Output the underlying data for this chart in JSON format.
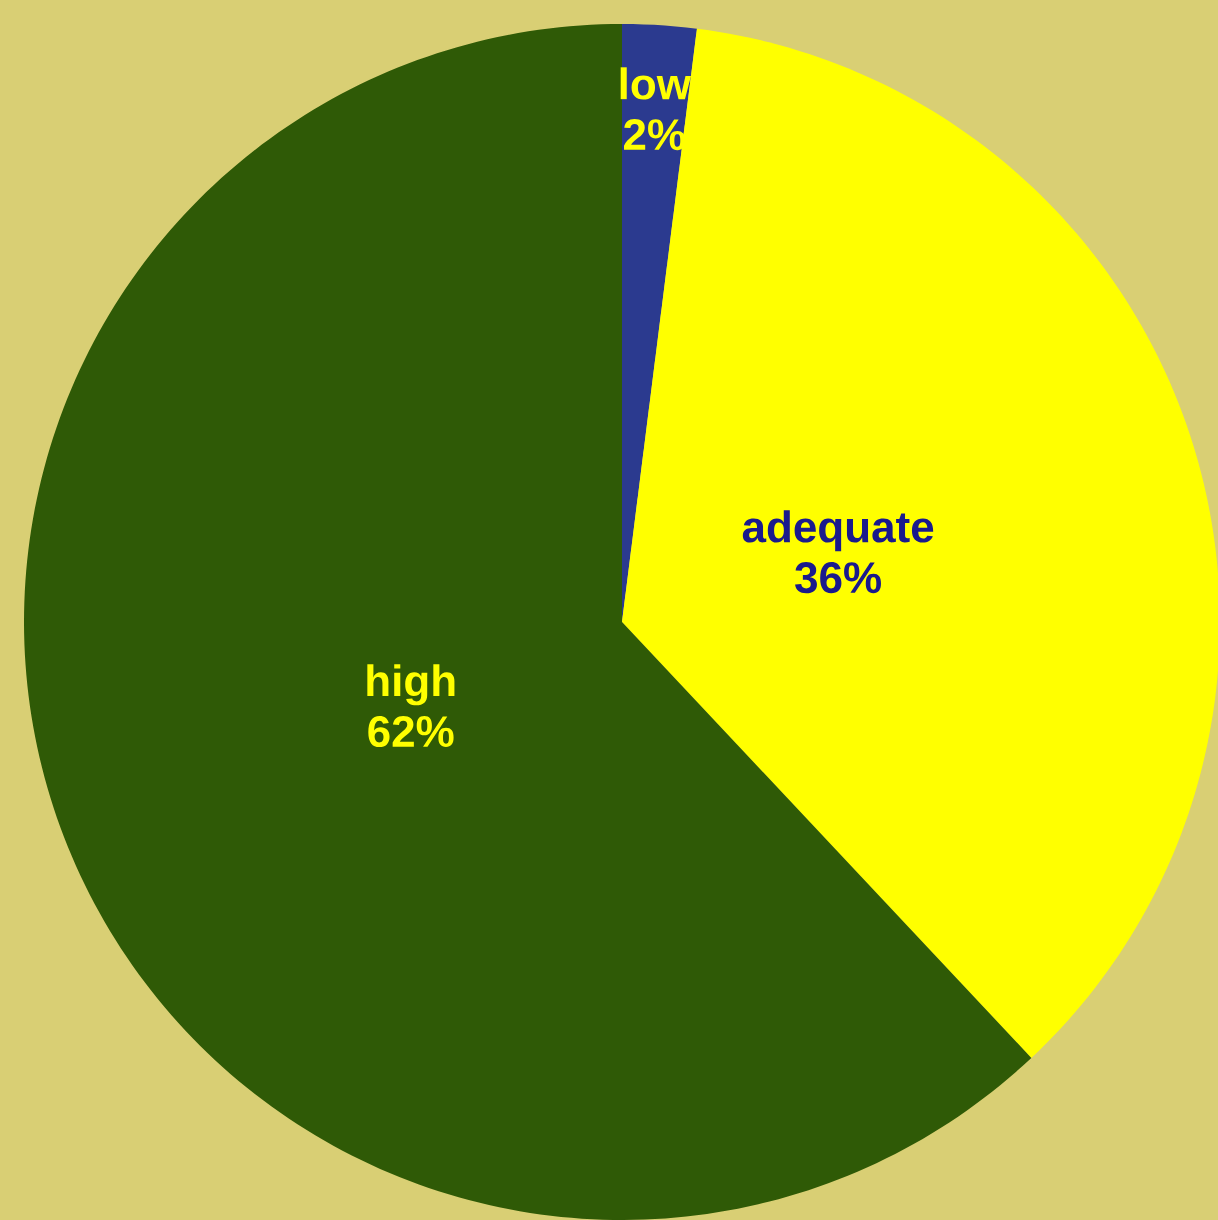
{
  "chart_data": {
    "type": "pie",
    "categories": [
      "low",
      "adequate",
      "high"
    ],
    "values": [
      2,
      36,
      62
    ],
    "colors": [
      "#2b3a8f",
      "#ffff00",
      "#2f5a06"
    ],
    "value_labels": [
      "2%",
      "36%",
      "62%"
    ]
  }
}
